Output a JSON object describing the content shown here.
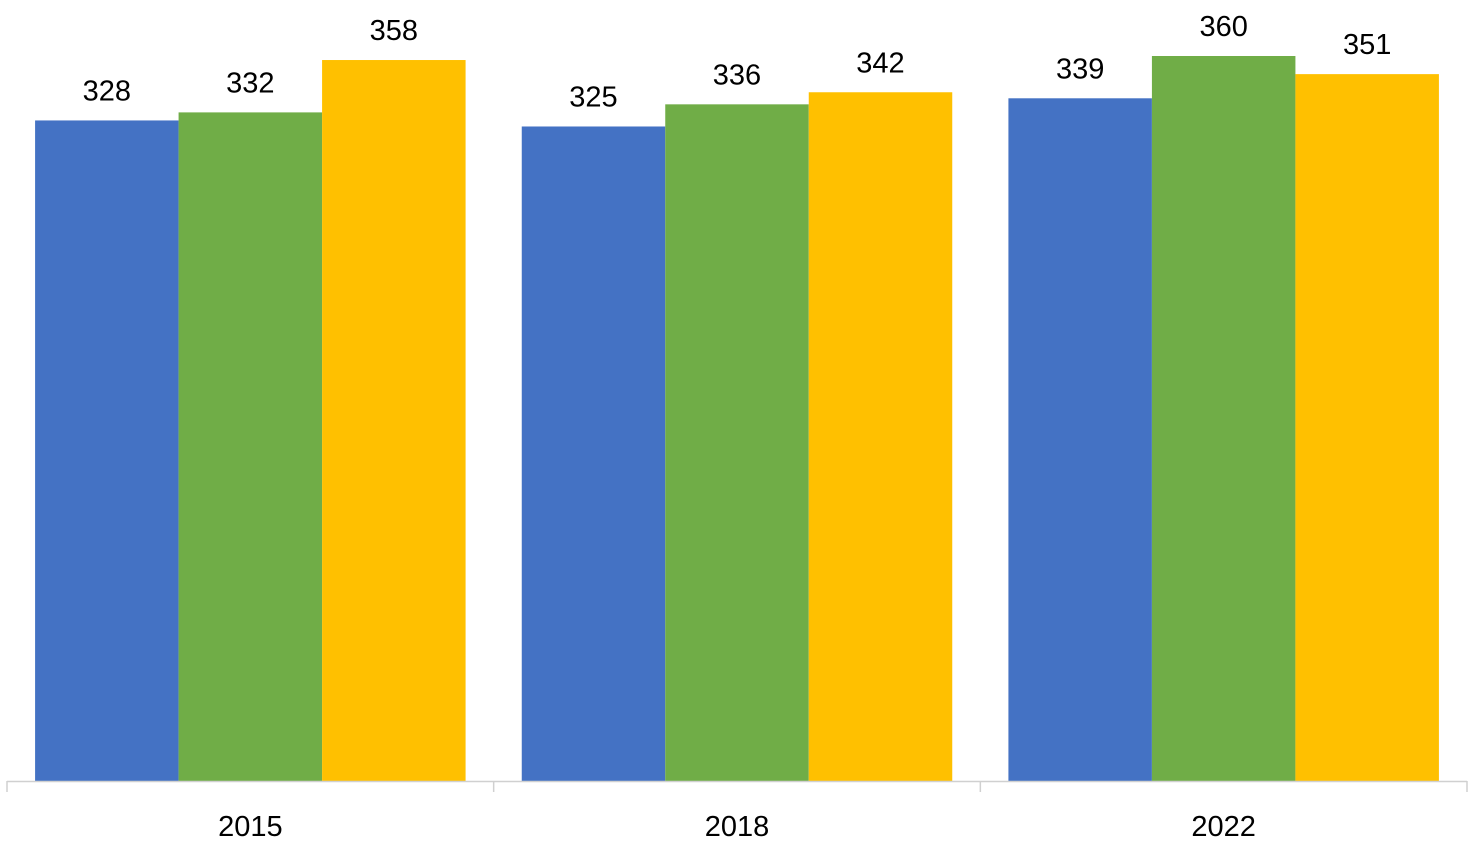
{
  "chart_data": {
    "type": "bar",
    "categories": [
      "2015",
      "2018",
      "2022"
    ],
    "series": [
      {
        "values": [
          328,
          325,
          339
        ],
        "color": "#4472C4"
      },
      {
        "values": [
          332,
          336,
          360
        ],
        "color": "#70AD47"
      },
      {
        "values": [
          358,
          342,
          351
        ],
        "color": "#FFC000"
      }
    ],
    "ylim": [
      0,
      360
    ],
    "data_labels": true,
    "grid": false,
    "legend": "none",
    "axis_color": "#D0D0D0"
  }
}
